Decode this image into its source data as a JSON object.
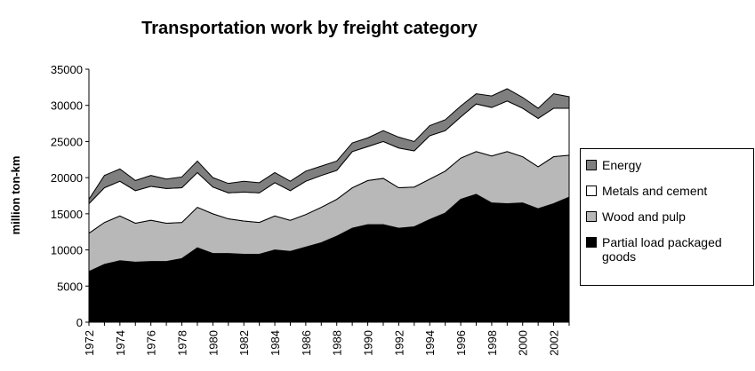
{
  "chart_data": {
    "type": "stacked_area",
    "title": "Transportation work by freight category",
    "y_label": "million ton-km",
    "categories": [
      "1972",
      null,
      "1974",
      null,
      "1976",
      null,
      "1978",
      null,
      "1980",
      null,
      "1982",
      null,
      "1984",
      null,
      "1986",
      null,
      "1988",
      null,
      "1990",
      null,
      "1992",
      null,
      "1994",
      null,
      "1996",
      null,
      "1998",
      null,
      "2000",
      null,
      "2002",
      null
    ],
    "series": [
      {
        "name": "Partial load packaged goods",
        "color": "#000000",
        "values": [
          7000,
          8000,
          8500,
          8300,
          8400,
          8400,
          8800,
          10300,
          9500,
          9500,
          9400,
          9400,
          10000,
          9800,
          10400,
          11000,
          11900,
          13000,
          13500,
          13500,
          13000,
          13200,
          14200,
          15100,
          17000,
          17700,
          16500,
          16400,
          16500,
          15700,
          16400,
          17300
        ]
      },
      {
        "name": "Wood and pulp",
        "color": "#b8b8b8",
        "values": [
          5300,
          5800,
          6200,
          5400,
          5700,
          5300,
          5000,
          5600,
          5500,
          4800,
          4600,
          4400,
          4700,
          4300,
          4500,
          4900,
          5100,
          5600,
          6100,
          6400,
          5600,
          5500,
          5600,
          5800,
          5700,
          5900,
          6500,
          7200,
          6400,
          5800,
          6500,
          5800
        ]
      },
      {
        "name": "Metals and cement",
        "color": "#ffffff",
        "values": [
          4100,
          4800,
          4800,
          4500,
          4700,
          4800,
          4800,
          4800,
          3700,
          3600,
          4000,
          4100,
          4600,
          4100,
          4600,
          4400,
          4000,
          5000,
          4700,
          5100,
          5500,
          5000,
          6000,
          5600,
          5700,
          6600,
          6700,
          7000,
          6700,
          6700,
          6700,
          6500
        ]
      },
      {
        "name": "Energy",
        "color": "#7f7f7f",
        "values": [
          600,
          1700,
          1700,
          1400,
          1500,
          1300,
          1500,
          1600,
          1300,
          1300,
          1500,
          1400,
          1400,
          1300,
          1400,
          1300,
          1300,
          1200,
          1200,
          1500,
          1500,
          1300,
          1400,
          1500,
          1500,
          1400,
          1600,
          1700,
          1500,
          1400,
          2000,
          1600
        ]
      }
    ],
    "ylim": [
      0,
      35000
    ],
    "yticks": [
      0,
      5000,
      10000,
      15000,
      20000,
      25000,
      30000,
      35000
    ],
    "legend": "right"
  }
}
